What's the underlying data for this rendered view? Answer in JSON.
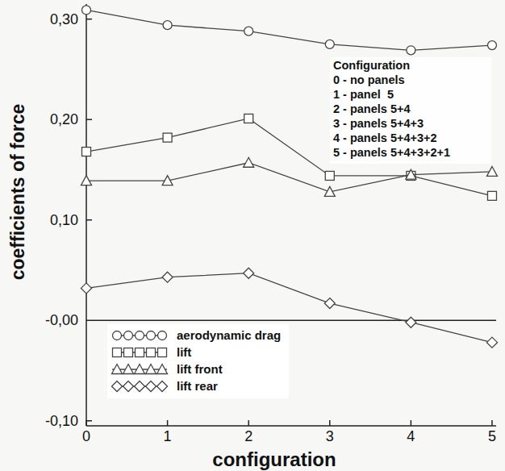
{
  "chart_data": {
    "type": "line",
    "x_label": "configuration",
    "y_label": "coefficients of force",
    "x": [
      0,
      1,
      2,
      3,
      4,
      5
    ],
    "xlim": [
      0,
      5.05
    ],
    "xticks": [
      0,
      1,
      2,
      3,
      4,
      5
    ],
    "ylim": [
      -0.105,
      0.315
    ],
    "yticks": [
      {
        "value": -0.1,
        "label": "-0,10"
      },
      {
        "value": 0,
        "label": "-0,00"
      },
      {
        "value": 0.1,
        "label": "0,10"
      },
      {
        "value": 0.2,
        "label": "0,20"
      },
      {
        "value": 0.3,
        "label": "0,30"
      }
    ],
    "grid": false,
    "legend": "lower left",
    "series": [
      {
        "name": "aerodynamic drag",
        "color": "#444444",
        "marker": "circle",
        "line_style": "solid",
        "values": [
          0.309,
          0.294,
          0.288,
          0.275,
          0.269,
          0.274
        ]
      },
      {
        "name": "lift",
        "color": "#444444",
        "marker": "square",
        "line_style": "solid",
        "values": [
          0.168,
          0.182,
          0.201,
          0.144,
          0.144,
          0.124
        ]
      },
      {
        "name": "lift front",
        "color": "#444444",
        "marker": "triangle",
        "line_style": "solid",
        "values": [
          0.139,
          0.139,
          0.157,
          0.128,
          0.145,
          0.148
        ]
      },
      {
        "name": "lift rear",
        "color": "#444444",
        "marker": "diamond",
        "line_style": "solid",
        "values": [
          0.032,
          0.043,
          0.047,
          0.017,
          -0.002,
          -0.022
        ]
      }
    ],
    "annotations": [
      "Configuration",
      "0 - no panels",
      "1 - panel  5",
      "2 - panels 5+4",
      "3 - panels 5+4+3",
      "4 - panels 5+4+3+2",
      "5 - panels 5+4+3+2+1"
    ]
  }
}
